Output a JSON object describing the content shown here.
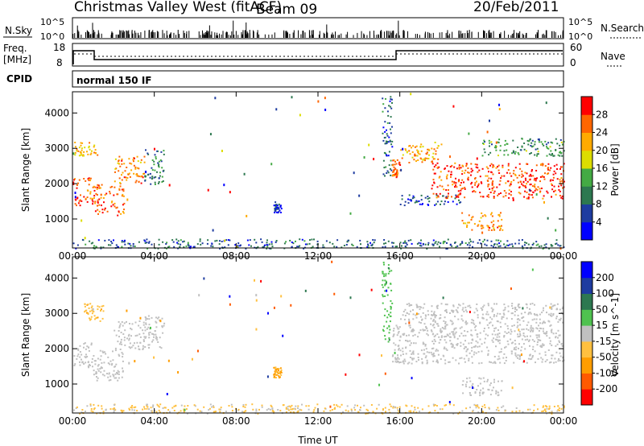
{
  "header": {
    "station": "Christmas Valley West (fitACF)",
    "beam": "Beam 09",
    "date": "20/Feb/2011"
  },
  "nsky_panel": {
    "label": "N.Sky",
    "y_ticks": [
      "10^5",
      "10^0"
    ],
    "right_ticks": [
      "10^5",
      "10^0"
    ],
    "right_label": "N.Search"
  },
  "freq_panel": {
    "label_top": "Freq.",
    "label_unit": "[MHz]",
    "y_ticks": [
      "18",
      "8"
    ],
    "right_ticks": [
      "60",
      "0"
    ],
    "right_label": "Nave"
  },
  "cpid_panel": {
    "label": "CPID",
    "mode": "normal 150 IF"
  },
  "colors": {
    "power": [
      "#0000ff",
      "#1e3ca0",
      "#2d7850",
      "#44aa44",
      "#dddd00",
      "#ffaa00",
      "#ff6600",
      "#ff0000"
    ],
    "velocity": [
      "#ff0000",
      "#ff5a00",
      "#ff9d00",
      "#ffc040",
      "#c0c0c0",
      "#4fc24f",
      "#2d7850",
      "#1e3ca0",
      "#0000ff"
    ]
  },
  "chart_data": [
    {
      "type": "heatmap",
      "name": "power",
      "ylabel": "Slant Range [km]",
      "x_ticks": [
        "00:00",
        "04:00",
        "08:00",
        "12:00",
        "16:00",
        "20:00",
        "00:00"
      ],
      "y_ticks": [
        "1000",
        "2000",
        "3000",
        "4000"
      ],
      "ylim": [
        180,
        4600
      ],
      "colorbar_label": "Power [dB]",
      "colorbar_ticks": [
        "4",
        "8",
        "12",
        "16",
        "20",
        "24",
        "28"
      ],
      "clim": [
        0,
        32
      ],
      "scatter_regions": [
        {
          "t": [
            0.0,
            1.0
          ],
          "r": [
            1400,
            2200
          ],
          "level": 28
        },
        {
          "t": [
            1.0,
            2.5
          ],
          "r": [
            1100,
            2000
          ],
          "level": 26
        },
        {
          "t": [
            2.0,
            3.5
          ],
          "r": [
            2000,
            2800
          ],
          "level": 24
        },
        {
          "t": [
            0.0,
            1.2
          ],
          "r": [
            2800,
            3200
          ],
          "level": 22
        },
        {
          "t": [
            3.5,
            4.5
          ],
          "r": [
            2000,
            3000
          ],
          "level": 10
        },
        {
          "t": [
            9.8,
            10.2
          ],
          "r": [
            1200,
            1500
          ],
          "level": 6
        },
        {
          "t": [
            15.1,
            15.6
          ],
          "r": [
            2200,
            4500
          ],
          "level": 8
        },
        {
          "t": [
            15.6,
            16.0
          ],
          "r": [
            2200,
            2700
          ],
          "level": 26
        },
        {
          "t": [
            16.0,
            18.0
          ],
          "r": [
            2600,
            3200
          ],
          "level": 22
        },
        {
          "t": [
            17.5,
            24.0
          ],
          "r": [
            1600,
            2600
          ],
          "level": 28
        },
        {
          "t": [
            16.0,
            19.0
          ],
          "r": [
            1400,
            1700
          ],
          "level": 6
        },
        {
          "t": [
            19.0,
            21.0
          ],
          "r": [
            700,
            1200
          ],
          "level": 24
        },
        {
          "t": [
            20.0,
            24.0
          ],
          "r": [
            2800,
            3300
          ],
          "level": 12
        },
        {
          "t": [
            0.0,
            24.0
          ],
          "r": [
            180,
            450
          ],
          "level": 8
        }
      ]
    },
    {
      "type": "heatmap",
      "name": "velocity",
      "ylabel": "Slant Range [km]",
      "xlabel": "Time UT",
      "x_ticks": [
        "00:00",
        "04:00",
        "08:00",
        "12:00",
        "16:00",
        "20:00",
        "00:00"
      ],
      "y_ticks": [
        "1000",
        "2000",
        "3000",
        "4000"
      ],
      "ylim": [
        180,
        4600
      ],
      "colorbar_label": "Velocity [m s^-1]",
      "colorbar_ticks": [
        "200",
        "100",
        "50",
        "15",
        "-15",
        "-50",
        "-100",
        "-200"
      ],
      "clim": [
        -250,
        250
      ],
      "scatter_regions": [
        {
          "t": [
            0.0,
            1.0
          ],
          "r": [
            1400,
            2200
          ],
          "level": 0
        },
        {
          "t": [
            1.0,
            2.5
          ],
          "r": [
            1100,
            2000
          ],
          "level": 0
        },
        {
          "t": [
            2.0,
            3.5
          ],
          "r": [
            2000,
            2800
          ],
          "level": 0
        },
        {
          "t": [
            0.5,
            1.5
          ],
          "r": [
            2800,
            3300
          ],
          "level": -60
        },
        {
          "t": [
            3.5,
            4.5
          ],
          "r": [
            2000,
            3000
          ],
          "level": 0
        },
        {
          "t": [
            9.8,
            10.2
          ],
          "r": [
            1200,
            1500
          ],
          "level": -80
        },
        {
          "t": [
            15.1,
            15.6
          ],
          "r": [
            2200,
            4500
          ],
          "level": 60
        },
        {
          "t": [
            15.6,
            16.0
          ],
          "r": [
            1600,
            2700
          ],
          "level": 0
        },
        {
          "t": [
            16.0,
            24.0
          ],
          "r": [
            1600,
            3300
          ],
          "level": 0
        },
        {
          "t": [
            19.0,
            21.0
          ],
          "r": [
            700,
            1200
          ],
          "level": 0
        },
        {
          "t": [
            0.0,
            24.0
          ],
          "r": [
            180,
            450
          ],
          "level": -40
        }
      ]
    }
  ]
}
